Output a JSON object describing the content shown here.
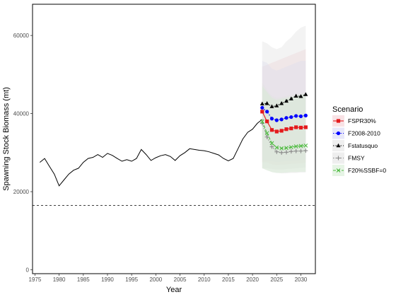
{
  "chart_data": {
    "type": "line",
    "xlabel": "Year",
    "ylabel": "Spawning Stock Biomass (mt)",
    "xlim": [
      1974.5,
      2033
    ],
    "ylim": [
      -1000,
      68000
    ],
    "xticks": [
      1975,
      1980,
      1985,
      1990,
      1995,
      2000,
      2005,
      2010,
      2015,
      2020,
      2025,
      2030
    ],
    "xtick_labels": [
      "1975",
      "1980",
      "1985",
      "1990",
      "1995",
      "2000",
      "2005",
      "2010",
      "2015",
      "2020",
      "2025",
      "2030"
    ],
    "yticks": [
      0,
      20000,
      40000,
      60000
    ],
    "ytick_labels": [
      "0",
      "20000",
      "40000",
      "60000"
    ],
    "grid": false,
    "reference_line": {
      "y": 16500,
      "style": "dashed"
    },
    "historical": {
      "color": "#000000",
      "x": [
        1976,
        1977,
        1978,
        1979,
        1980,
        1981,
        1982,
        1983,
        1984,
        1985,
        1986,
        1987,
        1988,
        1989,
        1990,
        1991,
        1992,
        1993,
        1994,
        1995,
        1996,
        1997,
        1998,
        1999,
        2000,
        2001,
        2002,
        2003,
        2004,
        2005,
        2006,
        2007,
        2008,
        2009,
        2010,
        2011,
        2012,
        2013,
        2014,
        2015,
        2016,
        2017,
        2018,
        2019,
        2020,
        2021,
        2022
      ],
      "y": [
        27500,
        28500,
        26500,
        24500,
        21500,
        23000,
        24500,
        25500,
        26000,
        27500,
        28500,
        28800,
        29500,
        28800,
        29800,
        29300,
        28500,
        27800,
        28200,
        27800,
        28500,
        30800,
        29500,
        28000,
        28700,
        29200,
        29500,
        29000,
        28000,
        29200,
        30000,
        31000,
        30800,
        30600,
        30500,
        30200,
        29800,
        29400,
        28500,
        27900,
        28500,
        31000,
        33500,
        35200,
        36000,
        37500,
        38500
      ]
    },
    "series": [
      {
        "name": "FSPR30%",
        "color": "#e41a1c",
        "linestyle": "solid",
        "marker": "square",
        "x": [
          2022,
          2023,
          2024,
          2025,
          2026,
          2027,
          2028,
          2029,
          2030,
          2031
        ],
        "y": [
          40500,
          38000,
          35800,
          35400,
          35600,
          36000,
          36200,
          36500,
          36400,
          36500
        ],
        "band": {
          "x": [
            2022,
            2023,
            2024,
            2025,
            2026,
            2027,
            2028,
            2029,
            2030,
            2031
          ],
          "lo": [
            27500,
            27500,
            27000,
            26800,
            26900,
            27000,
            27100,
            27200,
            27300,
            27400
          ],
          "hi": [
            52000,
            52500,
            53000,
            53500,
            54000,
            54500,
            55000,
            55500,
            56000,
            56500
          ],
          "fill": "#f4cfd3"
        }
      },
      {
        "name": "F2008-2010",
        "color": "#0000ff",
        "linestyle": "dotted",
        "marker": "circle",
        "x": [
          2022,
          2023,
          2024,
          2025,
          2026,
          2027,
          2028,
          2029,
          2030,
          2031
        ],
        "y": [
          41500,
          40500,
          38700,
          38300,
          38500,
          38900,
          39100,
          39400,
          39300,
          39500
        ],
        "band": {
          "x": [
            2022,
            2023,
            2024,
            2025,
            2026,
            2027,
            2028,
            2029,
            2030,
            2031
          ],
          "lo": [
            28000,
            28000,
            27800,
            27600,
            27700,
            27800,
            27900,
            28000,
            28100,
            28200
          ],
          "hi": [
            53500,
            53000,
            51500,
            51000,
            51500,
            52000,
            52500,
            53000,
            53500,
            53500
          ],
          "fill": "#d9d9f5"
        }
      },
      {
        "name": "Fstatusquo",
        "color": "#000000",
        "linestyle": "dotted",
        "marker": "triangle",
        "x": [
          2022,
          2023,
          2024,
          2025,
          2026,
          2027,
          2028,
          2029,
          2030,
          2031
        ],
        "y": [
          42500,
          42600,
          41800,
          42000,
          42600,
          43200,
          43800,
          44500,
          44400,
          44900
        ],
        "band": {
          "x": [
            2022,
            2023,
            2024,
            2025,
            2026,
            2027,
            2028,
            2029,
            2030,
            2031
          ],
          "lo": [
            26000,
            26000,
            25800,
            25700,
            25700,
            25800,
            25900,
            26000,
            26100,
            26200
          ],
          "hi": [
            58500,
            58000,
            57000,
            56500,
            57000,
            58500,
            59500,
            61000,
            62000,
            62500
          ],
          "fill": "#e4e4e4"
        }
      },
      {
        "name": "FMSY",
        "color": "#888888",
        "linestyle": "dotted",
        "marker": "plus",
        "x": [
          2022,
          2023,
          2024,
          2025,
          2026,
          2027,
          2028,
          2029,
          2030,
          2031
        ],
        "y": [
          37500,
          34000,
          31500,
          30200,
          30000,
          30100,
          30300,
          30400,
          30400,
          30500
        ],
        "band": {
          "x": [
            2022,
            2023,
            2024,
            2025,
            2026,
            2027,
            2028,
            2029,
            2030,
            2031
          ],
          "lo": [
            26000,
            25500,
            25000,
            24800,
            24700,
            24700,
            24800,
            24800,
            24900,
            24900
          ],
          "hi": [
            48000,
            46000,
            44500,
            44000,
            44200,
            44500,
            44800,
            45000,
            45200,
            45500
          ],
          "fill": "#e2e2e2"
        }
      },
      {
        "name": "F20%SSBF=0",
        "color": "#4dbb3f",
        "linestyle": "dashed",
        "marker": "x",
        "x": [
          2022,
          2023,
          2024,
          2025,
          2026,
          2027,
          2028,
          2029,
          2030,
          2031
        ],
        "y": [
          38000,
          35000,
          32400,
          31300,
          31100,
          31200,
          31400,
          31600,
          31700,
          31800
        ],
        "band": {
          "x": [
            2022,
            2023,
            2024,
            2025,
            2026,
            2027,
            2028,
            2029,
            2030,
            2031
          ],
          "lo": [
            26000,
            25500,
            25000,
            24800,
            24800,
            24900,
            25000,
            25000,
            25100,
            25100
          ],
          "hi": [
            47000,
            45500,
            44000,
            43500,
            43800,
            44000,
            44300,
            44500,
            44800,
            45000
          ],
          "fill": "#d5ecd3"
        }
      }
    ],
    "legend": {
      "title": "Scenario",
      "placement": "right"
    }
  }
}
